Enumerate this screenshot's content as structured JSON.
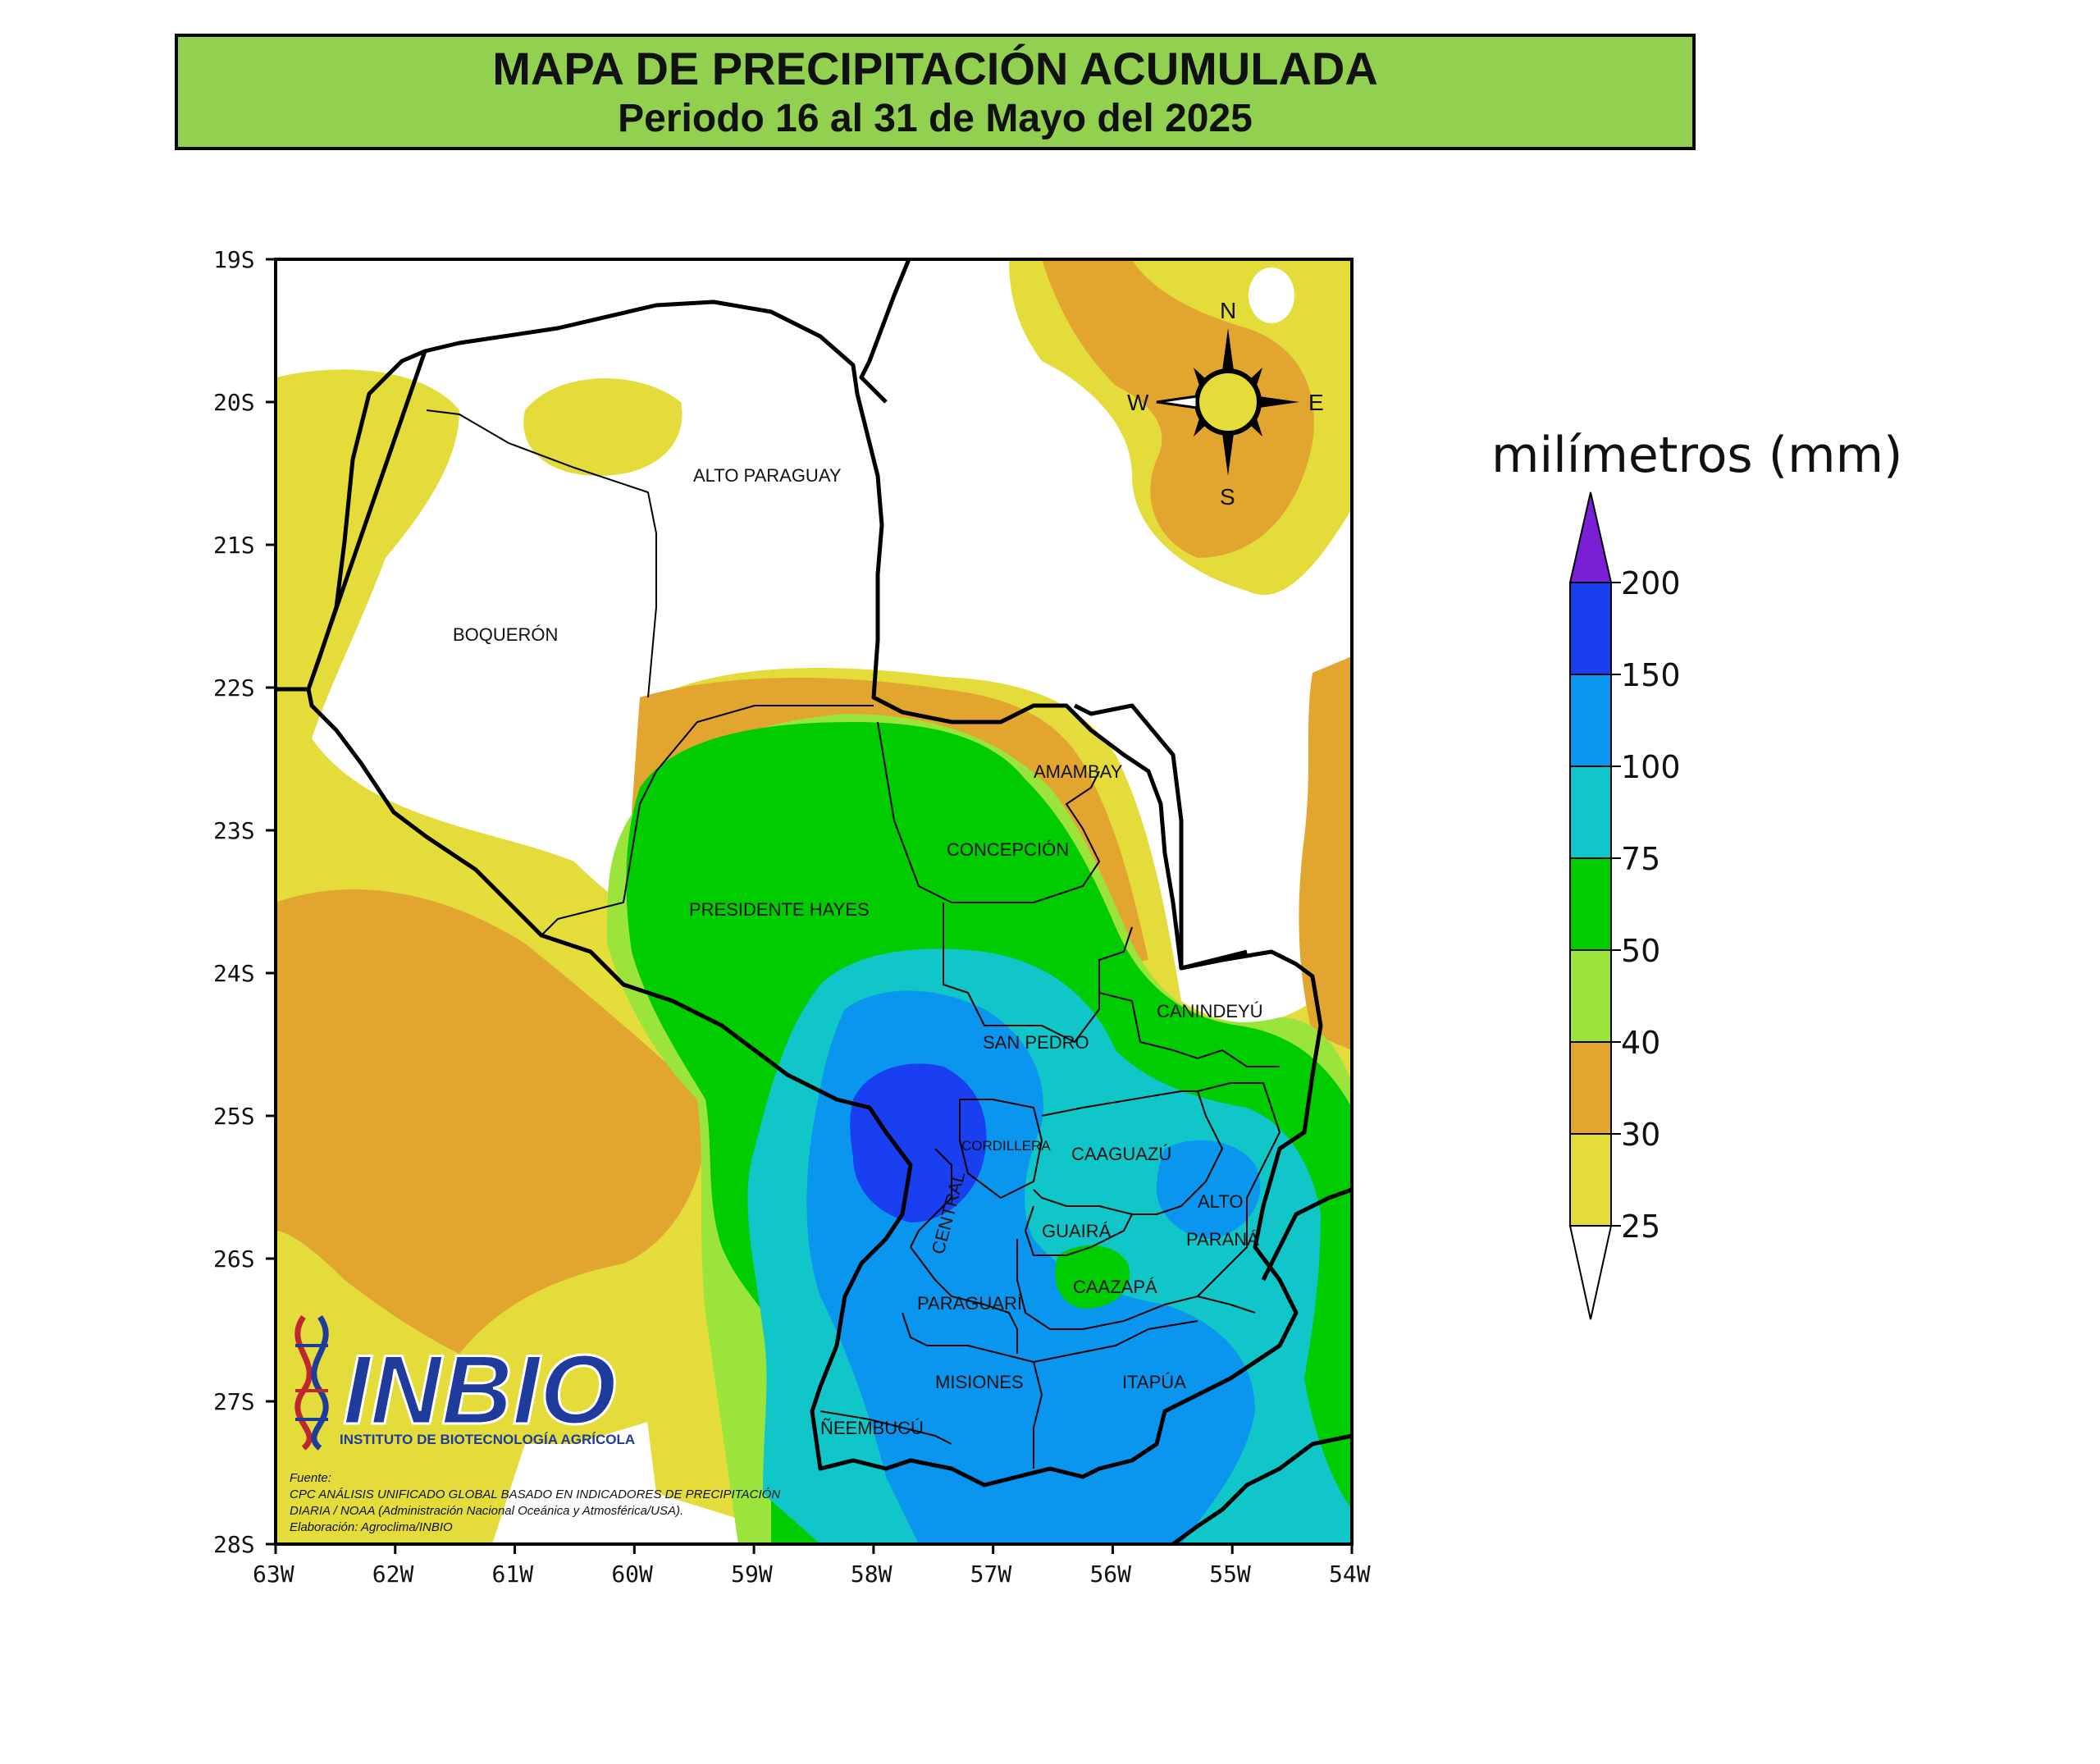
{
  "header": {
    "title": "MAPA DE PRECIPITACIÓN ACUMULADA",
    "subtitle": "Periodo 16 al 31 de Mayo del 2025"
  },
  "map": {
    "lat_ticks": [
      "19S",
      "20S",
      "21S",
      "22S",
      "23S",
      "24S",
      "25S",
      "26S",
      "27S",
      "28S"
    ],
    "lon_ticks": [
      "63W",
      "62W",
      "61W",
      "60W",
      "59W",
      "58W",
      "57W",
      "56W",
      "55W",
      "54W"
    ],
    "departments": {
      "alto_paraguay": "ALTO PARAGUAY",
      "boqueron": "BOQUERÓN",
      "amambay": "AMAMBAY",
      "concepcion": "CONCEPCIÓN",
      "presidente_hayes": "PRESIDENTE HAYES",
      "canindeyu": "CANINDEYÚ",
      "san_pedro": "SAN PEDRO",
      "cordillera": "CORDILLERA",
      "caaguazu": "CAAGUAZÚ",
      "alto_parana_1": "ALTO",
      "alto_parana_2": "PARANÁ",
      "central": "CENTRAL",
      "guaira": "GUAIRÁ",
      "caazapa": "CAAZAPÁ",
      "paraguari": "PARAGUARÍ",
      "misiones": "MISIONES",
      "itapua": "ITAPÚA",
      "neembucu": "ÑEEMBUCÚ"
    },
    "compass": {
      "n": "N",
      "s": "S",
      "e": "E",
      "w": "W"
    }
  },
  "legend": {
    "unit": "milímetros (mm)",
    "levels": [
      "200",
      "150",
      "100",
      "75",
      "50",
      "40",
      "30",
      "25"
    ],
    "colors": {
      "above_200": "#7a1fd6",
      "150_200": "#1a3ff0",
      "100_150": "#0a96ee",
      "75_100": "#10c6c8",
      "50_75": "#00cc00",
      "40_50": "#9ae43c",
      "30_40": "#e2a630",
      "25_30": "#e4dc3a",
      "below_25": "#ffffff"
    }
  },
  "logo": {
    "name": "INBIO",
    "subtitle": "INSTITUTO DE BIOTECNOLOGÍA AGRÍCOLA"
  },
  "source": {
    "line1": "Fuente:",
    "line2": "CPC ANÁLISIS UNIFICADO GLOBAL BASADO EN INDICADORES DE PRECIPITACIÓN",
    "line3": "DIARIA / NOAA (Administración Nacional Oceánica y Atmosférica/USA).",
    "line4": "Elaboración: Agroclima/INBIO"
  }
}
